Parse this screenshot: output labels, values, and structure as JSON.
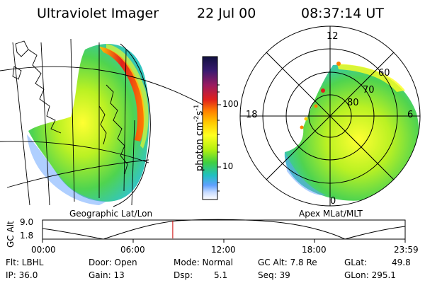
{
  "header": {
    "title": "Ultraviolet Imager",
    "date": "22 Jul 00",
    "time": "08:37:14 UT"
  },
  "geo_panel": {
    "label": "Geographic Lat/Lon"
  },
  "colorbar": {
    "label_main": "photon cm",
    "label_exp1": "-2",
    "label_mid": "s",
    "label_exp2": "-1",
    "tick_100": "100",
    "tick_10": "10",
    "colors": [
      "#101040",
      "#3a1a70",
      "#9a1a60",
      "#e0201c",
      "#ff8000",
      "#ffc800",
      "#ffff20",
      "#b4f010",
      "#40d040",
      "#20c0c0",
      "#60a0ff",
      "#c8dcff",
      "#ffffff"
    ]
  },
  "polar_panel": {
    "label": "Apex MLat/MLT",
    "mlt_labels": {
      "top": "12",
      "left": "18",
      "right": "6",
      "bottom": "0"
    },
    "lat_labels": {
      "l60": "60",
      "l70": "70",
      "l80": "80"
    }
  },
  "altitude": {
    "axis_label": "GC Alt",
    "y_top": "9.0",
    "y_bottom": "1.8",
    "x_ticks": [
      "00:00",
      "06:00",
      "12:00",
      "18:00",
      "23:59"
    ],
    "marker_hour": 8.62
  },
  "status": {
    "flt": "Flt: LBHL",
    "ip": "IP: 36.0",
    "door": "Door: Open",
    "gain": "Gain: 13",
    "mode": "Mode: Normal",
    "dsp": "Dsp:",
    "dsp_val": "5.1",
    "gc_alt": "GC Alt: 7.8 Re",
    "seq": "Seq: 39",
    "glat": "GLat:",
    "glat_val": "49.8",
    "glon": "GLon: 295.1"
  }
}
